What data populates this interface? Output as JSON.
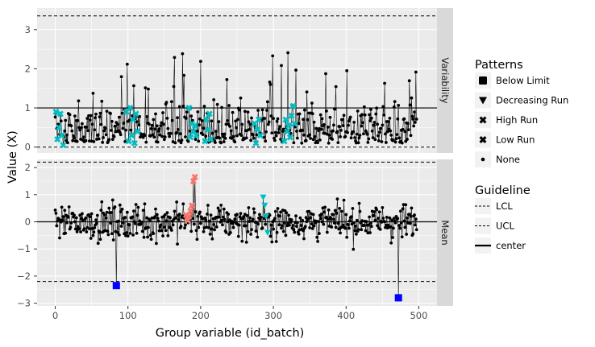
{
  "chart_data": {
    "type": "scatter",
    "x_label": "Group variable (id_batch)",
    "y_label": "Value (X)",
    "x_ticks": [
      "0",
      "100",
      "200",
      "300",
      "400",
      "500"
    ],
    "x_range": [
      -25,
      525
    ],
    "facets": [
      {
        "name": "Variability",
        "y_range": [
          -0.15,
          3.55
        ],
        "y_ticks": [
          "0",
          "1",
          "2",
          "3"
        ],
        "lcl": 0,
        "ucl": 3.35,
        "center": 1.0,
        "pattern_points": [
          {
            "pattern": "High Run",
            "x": [
              1,
              3,
              5,
              7,
              9,
              11,
              98,
              101,
              103,
              105,
              107,
              109,
              111,
              113,
              184,
              186,
              188,
              190,
              192,
              194,
              206,
              208,
              210,
              212,
              214,
              274,
              276,
              278,
              280,
              282,
              315,
              317,
              319,
              321,
              323,
              325,
              327,
              329
            ],
            "y": [
              0.9,
              0.2,
              0.5,
              0.85,
              0.3,
              0.05,
              0.9,
              0.15,
              1.0,
              0.3,
              0.7,
              0.1,
              0.85,
              0.4,
              1.0,
              0.25,
              0.6,
              0.4,
              0.55,
              0.3,
              0.15,
              0.7,
              0.45,
              0.85,
              0.2,
              0.6,
              0.1,
              0.45,
              0.7,
              0.3,
              0.15,
              0.7,
              0.4,
              0.55,
              0.25,
              0.8,
              1.05,
              0.6
            ]
          },
          {
            "pattern": "Decreasing Run",
            "x": [],
            "y": []
          },
          {
            "pattern": "Below Limit",
            "x": [],
            "y": []
          }
        ]
      },
      {
        "name": "Mean",
        "y_range": [
          -3.1,
          2.3
        ],
        "y_ticks": [
          "−3",
          "−2",
          "−1",
          "0",
          "1",
          "2"
        ],
        "lcl": -2.2,
        "ucl": 2.2,
        "center": 0,
        "pattern_points": [
          {
            "pattern": "Low Run",
            "x": [
              180,
              182,
              184,
              186,
              188,
              190,
              192
            ],
            "y": [
              0.25,
              0.05,
              0.2,
              0.4,
              0.6,
              1.5,
              1.65
            ]
          },
          {
            "pattern": "Decreasing Run",
            "x": [
              286,
              288,
              290,
              292
            ],
            "y": [
              0.9,
              0.6,
              0.2,
              -0.4
            ]
          },
          {
            "pattern": "Below Limit",
            "x": [
              84,
              472
            ],
            "y": [
              -2.35,
              -2.8
            ]
          }
        ]
      }
    ],
    "legend": {
      "patterns_title": "Patterns",
      "patterns": [
        "Below Limit",
        "Decreasing Run",
        "High Run",
        "Low Run",
        "None"
      ],
      "guideline_title": "Guideline",
      "guidelines": [
        "LCL",
        "UCL",
        "center"
      ],
      "placement": "right"
    },
    "colors": {
      "panel_bg": "#ebebeb",
      "strip_bg": "#d9d9d9",
      "grid": "#ffffff",
      "high_run": "#00bfc4",
      "low_run": "#f8766d",
      "below_limit": "#0000ff",
      "none": "#000000",
      "legend_key_bg": "#f2f2f2"
    }
  }
}
